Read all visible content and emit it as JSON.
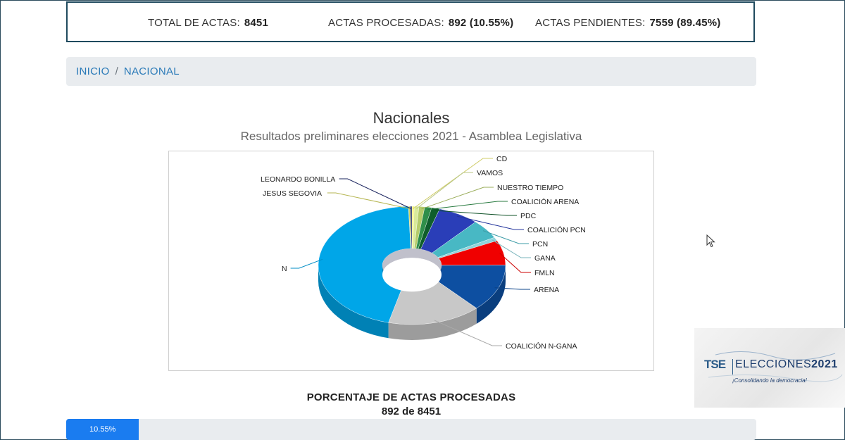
{
  "stats": {
    "total_label": "TOTAL DE ACTAS:",
    "total_value": "8451",
    "processed_label": "ACTAS PROCESADAS:",
    "processed_value": "892 (10.55%)",
    "pending_label": "ACTAS PENDIENTES:",
    "pending_value": "7559 (89.45%)"
  },
  "breadcrumb": {
    "home": "INICIO",
    "separator": "/",
    "current": "NACIONAL"
  },
  "title": "Nacionales",
  "subtitle": "Resultados preliminares elecciones 2021 - Asamblea Legislativa",
  "chart_data": {
    "type": "pie",
    "title": "",
    "labels": [
      "CD",
      "VAMOS",
      "NUESTRO TIEMPO",
      "COALICIÓN ARENA",
      "PDC",
      "COALICIÓN PCN",
      "PCN",
      "GANA",
      "FMLN",
      "ARENA",
      "COALICIÓN N-GANA",
      "N",
      "JESUS SEGOVIA",
      "LEONARDO BONILLA"
    ],
    "values": [
      0.4,
      0.8,
      1.0,
      1.2,
      1.4,
      7.1,
      5.3,
      1.0,
      6.8,
      13.0,
      16.2,
      45.5,
      0.3,
      0.3
    ],
    "colors": [
      "#f5f07a",
      "#d8e99a",
      "#b5cc6a",
      "#2f8f4a",
      "#0f5e2c",
      "#2a3eb8",
      "#48b8c4",
      "#8fd4dc",
      "#f00000",
      "#0d4fa1",
      "#c8c8c8",
      "#00a6e8",
      "#d6d660",
      "#1e2a6e"
    ],
    "donut": true,
    "three_d": true,
    "legend": "none"
  },
  "progress": {
    "title": "PORCENTAJE DE ACTAS PROCESADAS",
    "subtitle": "892 de 8451",
    "label": "10.55%",
    "fraction": 0.1055
  },
  "logo": {
    "brand": "TSE",
    "event_prefix": "ELECCIONES",
    "event_year": "2021",
    "slogan": "¡Consolidando la democracia!"
  },
  "icons": {
    "cursor": "mouse-pointer-icon"
  }
}
